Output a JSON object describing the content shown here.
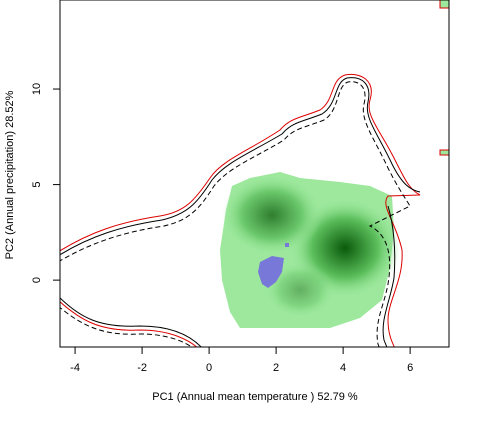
{
  "chart_data": {
    "type": "density",
    "xlabel": "PC1 (Annual mean temperature ) 52.79 %",
    "ylabel": "PC2 (Annual precipitation) 28.52%",
    "xlim": [
      -4.45,
      7.16
    ],
    "ylim": [
      -3.5,
      14.66
    ],
    "xticks": [
      -4,
      -2,
      0,
      2,
      4,
      6
    ],
    "yticks": [
      0,
      5,
      10
    ]
  }
}
